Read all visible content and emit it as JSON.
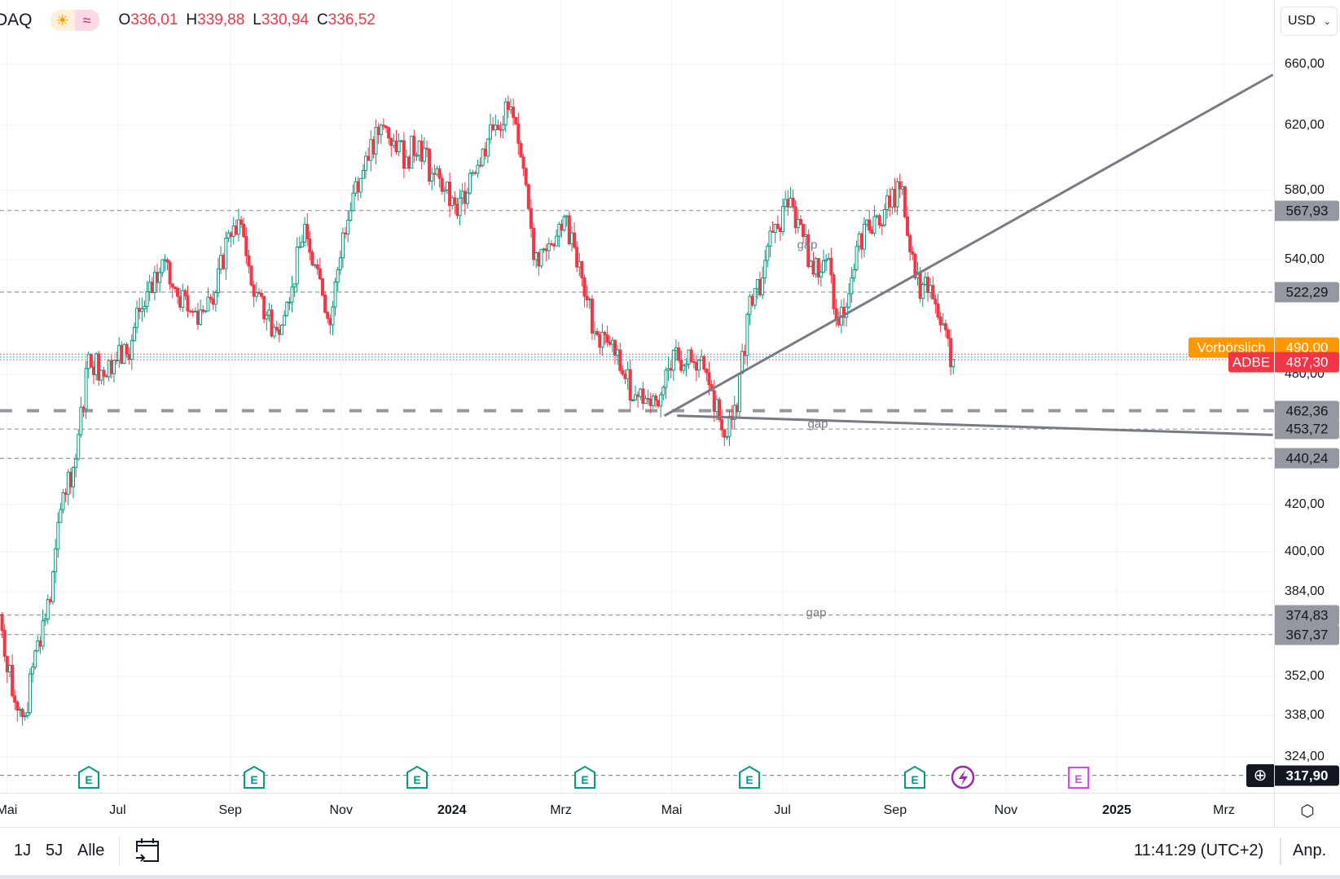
{
  "header": {
    "symbol": "DAQ",
    "session_icon": "sun-icon",
    "data_icon": "wave-icon",
    "o_label": "O",
    "o": "336,01",
    "h_label": "H",
    "h": "339,88",
    "l_label": "L",
    "l": "330,94",
    "c_label": "C",
    "c": "336,52"
  },
  "currency": "USD",
  "colors": {
    "up": "#089981",
    "down": "#f23645",
    "line": "#787b86",
    "premarket": "#ff9800",
    "last": "#f23645",
    "hline": "#9598a1"
  },
  "chart_data": {
    "type": "candlestick",
    "ticker": "ADBE",
    "scale": "log",
    "ylim": [
      310,
      670
    ],
    "grid": true,
    "start": "2023-04-27",
    "interval_days": 7,
    "closes": [
      375,
      345,
      338,
      365,
      380,
      425,
      440,
      490,
      482,
      487,
      490,
      512,
      522,
      540,
      520,
      512,
      512,
      522,
      555,
      560,
      520,
      510,
      500,
      525,
      560,
      535,
      505,
      555,
      585,
      598,
      620,
      610,
      600,
      610,
      590,
      580,
      565,
      590,
      605,
      620,
      630,
      600,
      540,
      545,
      560,
      555,
      520,
      500,
      495,
      480,
      470,
      468,
      470,
      492,
      485,
      487,
      472,
      450,
      462,
      520,
      530,
      560,
      570,
      560,
      532,
      540,
      505,
      530,
      560,
      565,
      570,
      582,
      530,
      522,
      505,
      487.3
    ],
    "price_ticks": [
      "660,00",
      "620,00",
      "580,00",
      "540,00",
      "480,00",
      "420,00",
      "400,00",
      "384,00",
      "352,00",
      "338,00",
      "324,00"
    ],
    "price_tick_values": [
      660,
      620,
      580,
      540,
      480,
      420,
      400,
      384,
      352,
      338,
      324
    ],
    "time_ticks": [
      {
        "label": "Mai",
        "date": "2023-05-01"
      },
      {
        "label": "Jul",
        "date": "2023-07-01"
      },
      {
        "label": "Sep",
        "date": "2023-09-01"
      },
      {
        "label": "Nov",
        "date": "2023-11-01"
      },
      {
        "label": "2024",
        "date": "2024-01-01",
        "year": true
      },
      {
        "label": "Mrz",
        "date": "2024-03-01"
      },
      {
        "label": "Mai",
        "date": "2024-05-01"
      },
      {
        "label": "Jul",
        "date": "2024-07-01"
      },
      {
        "label": "Sep",
        "date": "2024-09-01"
      },
      {
        "label": "Nov",
        "date": "2024-11-01"
      },
      {
        "label": "2025",
        "date": "2025-01-01",
        "year": true
      },
      {
        "label": "Mrz",
        "date": "2025-03-01"
      }
    ],
    "horizontal_levels": [
      {
        "value": 567.93,
        "label": "567,93"
      },
      {
        "value": 522.29,
        "label": "522,29"
      },
      {
        "value": 462.36,
        "label": "462,36",
        "style": "long-dash"
      },
      {
        "value": 453.72,
        "label": "453,72"
      },
      {
        "value": 440.24,
        "label": "440,24"
      },
      {
        "value": 374.83,
        "label": "374,83"
      },
      {
        "value": 367.37,
        "label": "367,37"
      }
    ],
    "alert_level": {
      "value": 317.9,
      "label": "317,90"
    },
    "premarket": {
      "label": "Vorbörslich",
      "value": 490.0,
      "value_label": "490,00"
    },
    "last": {
      "label": "ADBE",
      "value": 487.3,
      "value_label": "487,30"
    },
    "trendlines": [
      {
        "from": {
          "date": "2024-04-27",
          "price": 460
        },
        "to": {
          "date": "2025-03-28",
          "price": 653
        }
      },
      {
        "from": {
          "date": "2024-05-04",
          "price": 460
        },
        "to": {
          "date": "2025-03-28",
          "price": 451
        }
      }
    ],
    "annotations": [
      {
        "text": "gap"
      },
      {
        "text": "gap"
      },
      {
        "text": "gap"
      }
    ],
    "events": [
      {
        "type": "earnings",
        "date": "2023-06-15"
      },
      {
        "type": "earnings",
        "date": "2023-09-14"
      },
      {
        "type": "earnings",
        "date": "2023-12-13"
      },
      {
        "type": "earnings",
        "date": "2024-03-14"
      },
      {
        "type": "earnings",
        "date": "2024-06-13"
      },
      {
        "type": "earnings",
        "date": "2024-09-12"
      },
      {
        "type": "split-dividend",
        "date": "2024-10-08"
      },
      {
        "type": "earnings-upcoming",
        "date": "2024-12-11"
      }
    ],
    "event_letter": "E"
  },
  "bottom": {
    "ranges": [
      "1J",
      "5J",
      "Alle"
    ],
    "time": "11:41:29 (UTC+2)",
    "adjust": "Anp."
  }
}
